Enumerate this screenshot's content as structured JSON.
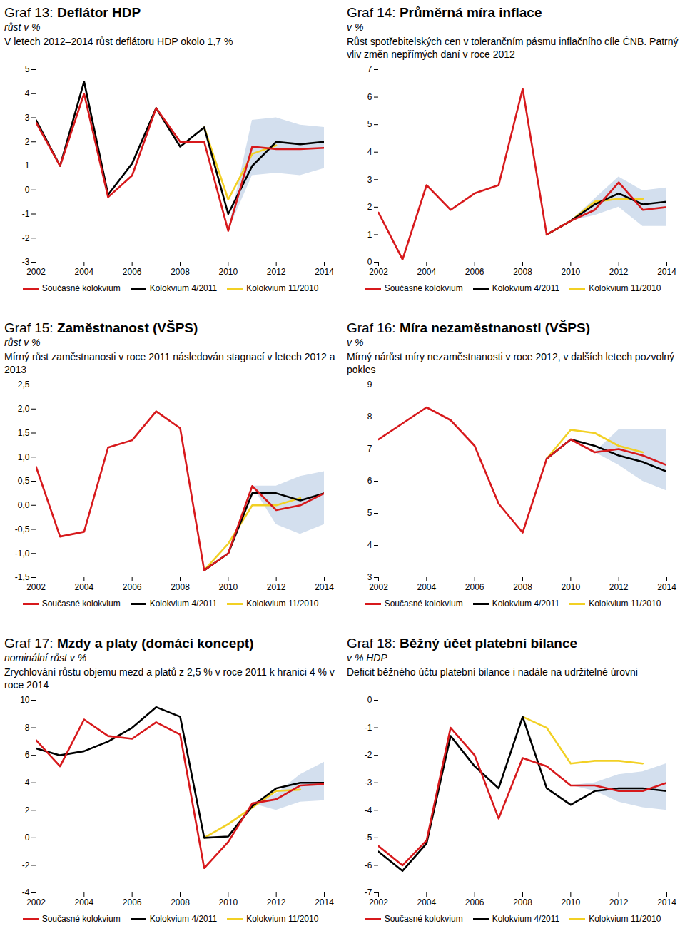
{
  "chart_data": [
    {
      "type": "line",
      "label": "Graf 13:",
      "title": "Deflátor HDP",
      "unit": "růst v %",
      "subtitle": "V letech 2012–2014 růst deflátoru HDP okolo 1,7 %",
      "x": [
        2002,
        2003,
        2004,
        2005,
        2006,
        2007,
        2008,
        2009,
        2010,
        2011,
        2012,
        2013,
        2014
      ],
      "xlim": [
        2002,
        2014
      ],
      "xticks": [
        2002,
        2004,
        2006,
        2008,
        2010,
        2012,
        2014
      ],
      "ylim": [
        -3,
        5
      ],
      "yticks": [
        -3,
        -2,
        -1,
        0,
        1,
        2,
        3,
        4,
        5
      ],
      "grid": false,
      "legend": "bottom",
      "series": [
        {
          "name": "Současné kolokvium",
          "color": "#d7191c",
          "values": [
            2.8,
            1.0,
            4.0,
            -0.3,
            0.6,
            3.4,
            2.0,
            2.0,
            -1.7,
            1.8,
            1.7,
            1.7,
            1.75
          ]
        },
        {
          "name": "Kolokvium 4/2011",
          "color": "#000000",
          "values": [
            2.9,
            1.0,
            4.5,
            -0.2,
            1.1,
            3.4,
            1.8,
            2.6,
            -1.0,
            1.0,
            2.0,
            1.9,
            2.0
          ]
        },
        {
          "name": "Kolokvium 11/2010",
          "color": "#f2d024",
          "values": [
            null,
            null,
            null,
            null,
            null,
            null,
            null,
            2.6,
            -0.4,
            1.5,
            1.85,
            null,
            null
          ]
        }
      ],
      "band": {
        "lower": [
          null,
          null,
          null,
          null,
          null,
          null,
          null,
          null,
          -1.7,
          0.6,
          0.7,
          0.6,
          0.9
        ],
        "upper": [
          null,
          null,
          null,
          null,
          null,
          null,
          null,
          null,
          -1.7,
          2.9,
          3.0,
          2.7,
          2.6
        ]
      }
    },
    {
      "type": "line",
      "label": "Graf 14:",
      "title": "Průměrná míra inflace",
      "unit": "v %",
      "subtitle": "Růst spotřebitelských cen v tolerančním pásmu inflačního cíle ČNB. Patrný vliv změn nepřímých daní v roce 2012",
      "x": [
        2002,
        2003,
        2004,
        2005,
        2006,
        2007,
        2008,
        2009,
        2010,
        2011,
        2012,
        2013,
        2014
      ],
      "xlim": [
        2002,
        2014
      ],
      "xticks": [
        2002,
        2004,
        2006,
        2008,
        2010,
        2012,
        2014
      ],
      "ylim": [
        0,
        7
      ],
      "yticks": [
        0,
        1,
        2,
        3,
        4,
        5,
        6,
        7
      ],
      "grid": false,
      "legend": "bottom",
      "series": [
        {
          "name": "Současné kolokvium",
          "color": "#d7191c",
          "values": [
            1.8,
            0.1,
            2.8,
            1.9,
            2.5,
            2.8,
            6.3,
            1.0,
            1.5,
            1.9,
            2.9,
            1.9,
            2.0
          ]
        },
        {
          "name": "Kolokvium 4/2011",
          "color": "#000000",
          "values": [
            null,
            null,
            null,
            null,
            null,
            null,
            null,
            1.0,
            1.5,
            2.1,
            2.5,
            2.1,
            2.2
          ]
        },
        {
          "name": "Kolokvium 11/2010",
          "color": "#f2d024",
          "values": [
            null,
            null,
            null,
            null,
            null,
            null,
            null,
            1.0,
            1.5,
            2.2,
            2.3,
            2.3,
            null
          ]
        }
      ],
      "band": {
        "lower": [
          null,
          null,
          null,
          null,
          null,
          null,
          null,
          null,
          1.5,
          1.7,
          2.0,
          1.3,
          1.3
        ],
        "upper": [
          null,
          null,
          null,
          null,
          null,
          null,
          null,
          null,
          1.5,
          2.3,
          3.1,
          2.6,
          2.7
        ]
      }
    },
    {
      "type": "line",
      "label": "Graf 15:",
      "title": "Zaměstnanost (VŠPS)",
      "unit": "růst v %",
      "subtitle": "Mírný růst zaměstnanosti v roce 2011 následován stagnací v letech 2012 a 2013",
      "x": [
        2002,
        2003,
        2004,
        2005,
        2006,
        2007,
        2008,
        2009,
        2010,
        2011,
        2012,
        2013,
        2014
      ],
      "xlim": [
        2002,
        2014
      ],
      "xticks": [
        2002,
        2004,
        2006,
        2008,
        2010,
        2012,
        2014
      ],
      "ylim": [
        -1.5,
        2.5
      ],
      "yticks": [
        {
          "value": -1.5,
          "label": "-1,5"
        },
        {
          "value": -1,
          "label": "-1,0"
        },
        {
          "value": -0.5,
          "label": "-0,5"
        },
        {
          "value": 0,
          "label": "0,0"
        },
        {
          "value": 0.5,
          "label": "0,5"
        },
        {
          "value": 1,
          "label": "1,0"
        },
        {
          "value": 1.5,
          "label": "1,5"
        },
        {
          "value": 2,
          "label": "2,0"
        },
        {
          "value": 2.5,
          "label": "2,5"
        }
      ],
      "grid": false,
      "legend": "bottom",
      "series": [
        {
          "name": "Současné kolokvium",
          "color": "#d7191c",
          "values": [
            0.8,
            -0.65,
            -0.55,
            1.2,
            1.35,
            1.95,
            1.6,
            -1.35,
            -1.0,
            0.4,
            -0.1,
            0.0,
            0.25
          ]
        },
        {
          "name": "Kolokvium 4/2011",
          "color": "#000000",
          "values": [
            null,
            null,
            null,
            null,
            null,
            null,
            null,
            -1.35,
            -1.0,
            0.25,
            0.25,
            0.1,
            0.25
          ]
        },
        {
          "name": "Kolokvium 11/2010",
          "color": "#f2d024",
          "values": [
            null,
            null,
            null,
            null,
            null,
            null,
            null,
            -1.35,
            -0.8,
            0.0,
            0.0,
            0.15,
            null
          ]
        }
      ],
      "band": {
        "lower": [
          null,
          null,
          null,
          null,
          null,
          null,
          null,
          null,
          null,
          0.4,
          -0.4,
          -0.6,
          -0.4
        ],
        "upper": [
          null,
          null,
          null,
          null,
          null,
          null,
          null,
          null,
          null,
          0.4,
          0.4,
          0.6,
          0.7
        ]
      }
    },
    {
      "type": "line",
      "label": "Graf 16:",
      "title": "Míra nezaměstnanosti (VŠPS)",
      "unit": "v %",
      "subtitle": "Mírný nárůst míry nezaměstnanosti v roce 2012, v dalších letech pozvolný pokles",
      "x": [
        2002,
        2003,
        2004,
        2005,
        2006,
        2007,
        2008,
        2009,
        2010,
        2011,
        2012,
        2013,
        2014
      ],
      "xlim": [
        2002,
        2014
      ],
      "xticks": [
        2002,
        2004,
        2006,
        2008,
        2010,
        2012,
        2014
      ],
      "ylim": [
        3,
        9
      ],
      "yticks": [
        3,
        4,
        5,
        6,
        7,
        8,
        9
      ],
      "grid": false,
      "legend": "bottom",
      "series": [
        {
          "name": "Současné kolokvium",
          "color": "#d7191c",
          "values": [
            7.3,
            7.8,
            8.3,
            7.9,
            7.1,
            5.3,
            4.4,
            6.7,
            7.3,
            6.9,
            7.0,
            6.8,
            6.5
          ]
        },
        {
          "name": "Kolokvium 4/2011",
          "color": "#000000",
          "values": [
            null,
            null,
            null,
            null,
            null,
            null,
            null,
            6.7,
            7.3,
            7.1,
            6.8,
            6.6,
            6.3
          ]
        },
        {
          "name": "Kolokvium 11/2010",
          "color": "#f2d024",
          "values": [
            null,
            null,
            null,
            null,
            null,
            null,
            null,
            6.7,
            7.6,
            7.5,
            7.1,
            6.9,
            null
          ]
        }
      ],
      "band": {
        "lower": [
          null,
          null,
          null,
          null,
          null,
          null,
          null,
          null,
          null,
          6.9,
          6.5,
          6.0,
          5.7
        ],
        "upper": [
          null,
          null,
          null,
          null,
          null,
          null,
          null,
          null,
          null,
          6.9,
          7.6,
          7.6,
          7.6
        ]
      }
    },
    {
      "type": "line",
      "label": "Graf 17:",
      "title": "Mzdy a platy (domácí koncept)",
      "unit": "nominální růst v %",
      "subtitle": "Zrychlování růstu objemu mezd a platů z 2,5 % v roce 2011 k hranici 4 % v roce 2014",
      "x": [
        2002,
        2003,
        2004,
        2005,
        2006,
        2007,
        2008,
        2009,
        2010,
        2011,
        2012,
        2013,
        2014
      ],
      "xlim": [
        2002,
        2014
      ],
      "xticks": [
        2002,
        2004,
        2006,
        2008,
        2010,
        2012,
        2014
      ],
      "ylim": [
        -4,
        10
      ],
      "yticks": [
        -4,
        -2,
        0,
        2,
        4,
        6,
        8,
        10
      ],
      "grid": false,
      "legend": "bottom",
      "series": [
        {
          "name": "Současné kolokvium",
          "color": "#d7191c",
          "values": [
            7.1,
            5.2,
            8.6,
            7.4,
            7.2,
            8.4,
            7.5,
            -2.2,
            -0.3,
            2.5,
            2.8,
            3.8,
            3.9
          ]
        },
        {
          "name": "Kolokvium 4/2011",
          "color": "#000000",
          "values": [
            6.5,
            6.0,
            6.3,
            7.0,
            8.0,
            9.5,
            8.8,
            0.0,
            0.1,
            2.3,
            3.6,
            4.0,
            4.0
          ]
        },
        {
          "name": "Kolokvium 11/2010",
          "color": "#f2d024",
          "values": [
            null,
            null,
            null,
            null,
            null,
            null,
            null,
            0.0,
            1.0,
            2.2,
            3.4,
            3.5,
            null
          ]
        }
      ],
      "band": {
        "lower": [
          null,
          null,
          null,
          null,
          null,
          null,
          null,
          null,
          null,
          2.5,
          2.0,
          2.6,
          2.7
        ],
        "upper": [
          null,
          null,
          null,
          null,
          null,
          null,
          null,
          null,
          null,
          2.5,
          3.2,
          4.6,
          5.5
        ]
      }
    },
    {
      "type": "line",
      "label": "Graf 18:",
      "title": "Běžný účet platební bilance",
      "unit": "v % HDP",
      "subtitle": "Deficit běžného účtu platební bilance i nadále na udržitelné úrovni",
      "x": [
        2002,
        2003,
        2004,
        2005,
        2006,
        2007,
        2008,
        2009,
        2010,
        2011,
        2012,
        2013,
        2014
      ],
      "xlim": [
        2002,
        2014
      ],
      "xticks": [
        2002,
        2004,
        2006,
        2008,
        2010,
        2012,
        2014
      ],
      "ylim": [
        -7,
        0
      ],
      "yticks": [
        -7,
        -6,
        -5,
        -4,
        -3,
        -2,
        -1,
        0
      ],
      "grid": false,
      "legend": "bottom",
      "series": [
        {
          "name": "Současné kolokvium",
          "color": "#d7191c",
          "values": [
            -5.3,
            -6.0,
            -5.1,
            -1.0,
            -2.0,
            -4.3,
            -2.1,
            -2.4,
            -3.1,
            -3.1,
            -3.3,
            -3.3,
            -3.0
          ]
        },
        {
          "name": "Kolokvium 4/2011",
          "color": "#000000",
          "values": [
            -5.5,
            -6.2,
            -5.2,
            -1.3,
            -2.4,
            -3.2,
            -0.6,
            -3.2,
            -3.8,
            -3.3,
            -3.2,
            -3.2,
            -3.3
          ]
        },
        {
          "name": "Kolokvium 11/2010",
          "color": "#f2d024",
          "values": [
            null,
            null,
            null,
            null,
            null,
            null,
            -0.6,
            -1.0,
            -2.3,
            -2.2,
            -2.2,
            -2.3,
            null
          ]
        }
      ],
      "band": {
        "lower": [
          null,
          null,
          null,
          null,
          null,
          null,
          null,
          null,
          -3.1,
          -3.3,
          -3.7,
          -3.9,
          -4.0
        ],
        "upper": [
          null,
          null,
          null,
          null,
          null,
          null,
          null,
          null,
          -3.1,
          -3.0,
          -2.7,
          -2.6,
          -2.3
        ]
      }
    }
  ]
}
